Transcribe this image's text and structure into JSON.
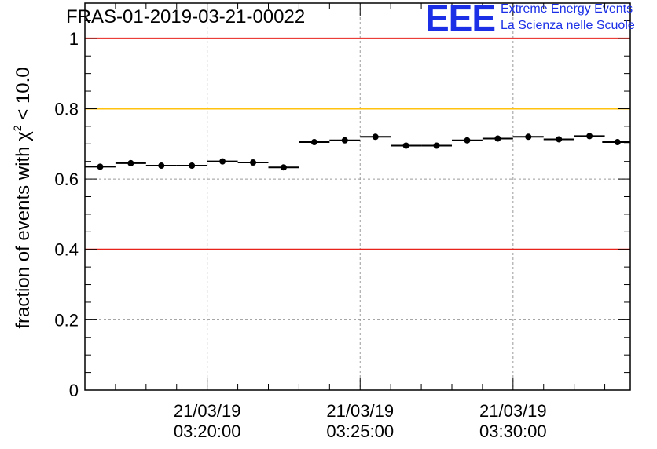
{
  "title": "FRAS-01-2019-03-21-00022",
  "logo": {
    "acronym": "EEE",
    "line1": "Extreme Energy Events",
    "line2": "La Scienza nelle Scuole",
    "color": "#1a2fe6"
  },
  "chart_data": {
    "type": "scatter",
    "title": "FRAS-01-2019-03-21-00022",
    "ylabel_prefix": "fraction of events with ",
    "ylabel_symbol": "χ",
    "ylabel_superscript": "2",
    "ylabel_suffix": " < 10.0",
    "ylim": [
      0,
      1.1
    ],
    "yticks": [
      "0",
      "0.2",
      "0.4",
      "0.6",
      "0.8",
      "1"
    ],
    "xlim": [
      "2019-03-21 03:16:00",
      "2019-03-21 03:33:50"
    ],
    "xticks": [
      {
        "date": "21/03/19",
        "time": "03:20:00"
      },
      {
        "date": "21/03/19",
        "time": "03:25:00"
      },
      {
        "date": "21/03/19",
        "time": "03:30:00"
      }
    ],
    "grid": true,
    "reference_lines": [
      {
        "y": 1.0,
        "color": "#e8231b"
      },
      {
        "y": 0.8,
        "color": "#ffc20e"
      },
      {
        "y": 0.4,
        "color": "#e8231b"
      }
    ],
    "point_color": "#000000",
    "bin_minutes": 1,
    "series": [
      {
        "times": [
          "03:16:30",
          "03:17:30",
          "03:18:30",
          "03:19:30",
          "03:20:30",
          "03:21:30",
          "03:22:30",
          "03:23:30",
          "03:24:30",
          "03:25:30",
          "03:26:30",
          "03:27:30",
          "03:28:30",
          "03:29:30",
          "03:30:30",
          "03:31:30",
          "03:32:30",
          "03:33:25"
        ],
        "values": [
          0.635,
          0.645,
          0.638,
          0.638,
          0.65,
          0.647,
          0.633,
          0.705,
          0.71,
          0.72,
          0.695,
          0.695,
          0.71,
          0.715,
          0.72,
          0.713,
          0.722,
          0.705
        ]
      }
    ]
  }
}
